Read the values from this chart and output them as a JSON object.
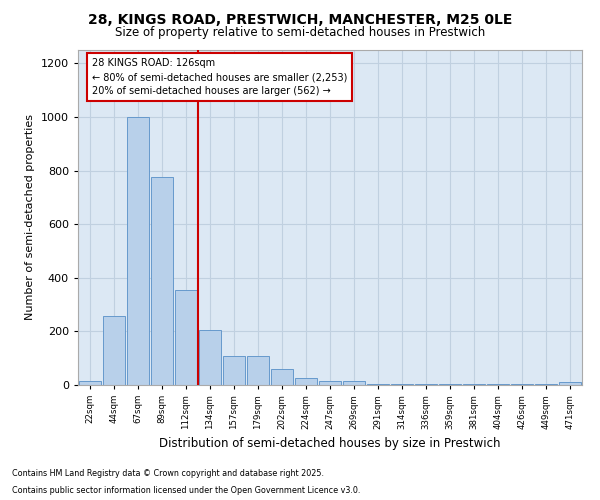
{
  "title": "28, KINGS ROAD, PRESTWICH, MANCHESTER, M25 0LE",
  "subtitle": "Size of property relative to semi-detached houses in Prestwich",
  "xlabel": "Distribution of semi-detached houses by size in Prestwich",
  "ylabel": "Number of semi-detached properties",
  "categories": [
    "22sqm",
    "44sqm",
    "67sqm",
    "89sqm",
    "112sqm",
    "134sqm",
    "157sqm",
    "179sqm",
    "202sqm",
    "224sqm",
    "247sqm",
    "269sqm",
    "291sqm",
    "314sqm",
    "336sqm",
    "359sqm",
    "381sqm",
    "404sqm",
    "426sqm",
    "449sqm",
    "471sqm"
  ],
  "values": [
    15,
    258,
    1000,
    775,
    355,
    205,
    110,
    110,
    60,
    27,
    14,
    14,
    5,
    5,
    5,
    5,
    5,
    2,
    2,
    2,
    10
  ],
  "bar_color": "#b8d0ea",
  "bar_edge_color": "#6699cc",
  "grid_color": "#c0d0e0",
  "background_color": "#dce8f4",
  "vline_color": "#cc0000",
  "annotation_title": "28 KINGS ROAD: 126sqm",
  "annotation_line1": "← 80% of semi-detached houses are smaller (2,253)",
  "annotation_line2": "20% of semi-detached houses are larger (562) →",
  "annotation_box_color": "#cc0000",
  "ylim": [
    0,
    1250
  ],
  "yticks": [
    0,
    200,
    400,
    600,
    800,
    1000,
    1200
  ],
  "footer_line1": "Contains HM Land Registry data © Crown copyright and database right 2025.",
  "footer_line2": "Contains public sector information licensed under the Open Government Licence v3.0."
}
